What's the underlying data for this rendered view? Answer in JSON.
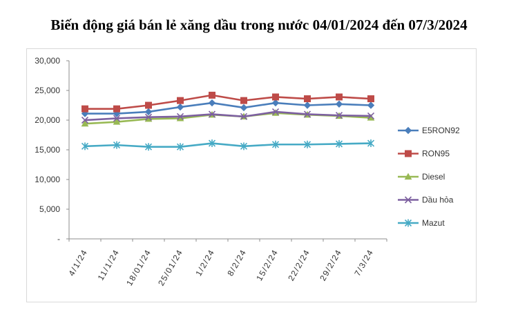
{
  "chart_data": {
    "type": "line",
    "title": "Biến động giá bán lẻ xăng dầu trong nước 04/01/2024 đến 07/3/2024",
    "xlabel": "",
    "ylabel": "",
    "ylim": [
      0,
      30000
    ],
    "yticks": [
      "-",
      "5,000",
      "10,000",
      "15,000",
      "20,000",
      "25,000",
      "30,000"
    ],
    "categories": [
      "4/1/24",
      "11/1/24",
      "18/01/24",
      "25/01/24",
      "1/2/24",
      "8/2/24",
      "15/2/24",
      "22/2/24",
      "29/2/24",
      "7/3/24"
    ],
    "legend_position": "right",
    "grid": false,
    "series": [
      {
        "name": "E5RON92",
        "color": "#4a7ebb",
        "marker": "diamond",
        "values": [
          21100,
          21100,
          21400,
          22200,
          22900,
          22100,
          22900,
          22500,
          22700,
          22500
        ]
      },
      {
        "name": "RON95",
        "color": "#be4b48",
        "marker": "square",
        "values": [
          21900,
          21900,
          22500,
          23300,
          24200,
          23300,
          23900,
          23600,
          23900,
          23600
        ]
      },
      {
        "name": "Diesel",
        "color": "#98b954",
        "marker": "triangle",
        "values": [
          19400,
          19700,
          20200,
          20300,
          20900,
          20600,
          21200,
          20900,
          20700,
          20400
        ]
      },
      {
        "name": "Dầu hỏa",
        "color": "#7d60a0",
        "marker": "x",
        "values": [
          20000,
          20300,
          20500,
          20600,
          21000,
          20600,
          21400,
          21000,
          20800,
          20700
        ]
      },
      {
        "name": "Mazut",
        "color": "#46aac5",
        "marker": "star",
        "values": [
          15600,
          15800,
          15500,
          15500,
          16100,
          15600,
          15900,
          15900,
          16000,
          16100
        ]
      }
    ]
  }
}
